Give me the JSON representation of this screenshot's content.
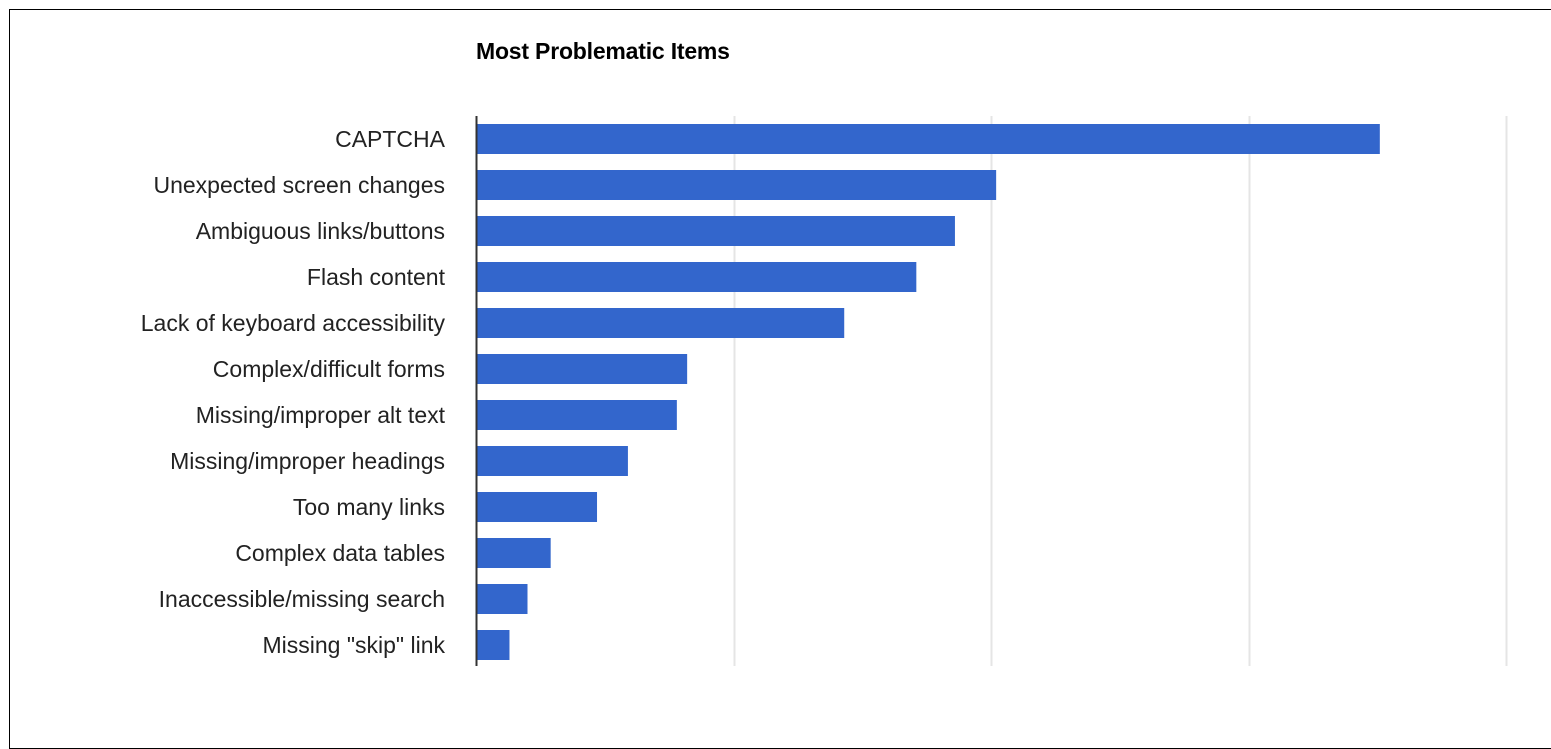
{
  "chart_data": {
    "type": "bar",
    "orientation": "horizontal",
    "title": "Most Problematic Items",
    "categories": [
      "CAPTCHA",
      "Unexpected screen changes",
      "Ambiguous links/buttons",
      "Flash content",
      "Lack of keyboard accessibility",
      "Complex/difficult forms",
      "Missing/improper alt text",
      "Missing/improper headings",
      "Too many links",
      "Complex data tables",
      "Inaccessible/missing search",
      "Missing \"skip\" link"
    ],
    "values": [
      351,
      202,
      186,
      171,
      143,
      82,
      78,
      59,
      47,
      29,
      20,
      13
    ],
    "xlim": [
      0,
      400
    ],
    "x_gridlines": [
      0,
      100,
      200,
      300,
      400
    ],
    "x_tick_labels_shown": false,
    "grid": true,
    "legend": "none",
    "bar_color": "#3366cc",
    "grid_color": "#e5e5e5",
    "axis_color": "#333333"
  }
}
